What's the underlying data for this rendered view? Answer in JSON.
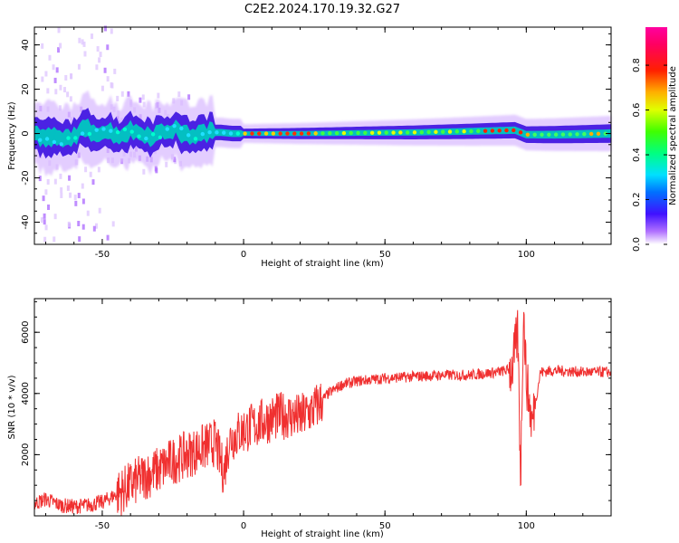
{
  "title": "C2E2.2024.170.19.32.G27",
  "colors": {
    "snr_line": "#f03030",
    "axis": "#000000",
    "background": "#ffffff"
  },
  "chart_data": [
    {
      "type": "heatmap",
      "xlabel": "Height of straight line (km)",
      "ylabel": "Frequency (Hz)",
      "xlim": [
        -74,
        130
      ],
      "ylim": [
        -50,
        48
      ],
      "xticks": [
        -50,
        0,
        50,
        100
      ],
      "yticks": [
        -40,
        -20,
        0,
        20,
        40
      ],
      "ridge": [
        {
          "h": -72,
          "f": -2.5
        },
        {
          "h": -68,
          "f": -1.5
        },
        {
          "h": -64,
          "f": -3.0
        },
        {
          "h": -60,
          "f": -1.0
        },
        {
          "h": -56,
          "f": 2.0
        },
        {
          "h": -52,
          "f": 0.5
        },
        {
          "h": -48,
          "f": 1.0
        },
        {
          "h": -44,
          "f": -1.0
        },
        {
          "h": -40,
          "f": 1.5
        },
        {
          "h": -36,
          "f": 0.0
        },
        {
          "h": -32,
          "f": -1.0
        },
        {
          "h": -28,
          "f": 1.0
        },
        {
          "h": -24,
          "f": 2.0
        },
        {
          "h": -20,
          "f": -1.0
        },
        {
          "h": -16,
          "f": -0.5
        },
        {
          "h": -12,
          "f": 0.5
        },
        {
          "h": -8,
          "f": 0.5
        },
        {
          "h": -4,
          "f": 0.0
        },
        {
          "h": 0,
          "f": 0.0
        },
        {
          "h": 20,
          "f": 0.0
        },
        {
          "h": 60,
          "f": 0.5
        },
        {
          "h": 80,
          "f": 1.0
        },
        {
          "h": 96,
          "f": 1.5
        },
        {
          "h": 100,
          "f": -0.5
        },
        {
          "h": 110,
          "f": -0.5
        },
        {
          "h": 130,
          "f": 0.0
        }
      ],
      "colorbar": {
        "label": "Normalized spectral amplitude",
        "range": [
          0,
          0.97
        ],
        "ticks": [
          0.0,
          0.2,
          0.4,
          0.6,
          0.8
        ],
        "tick_labels": [
          "0.0",
          "0.2",
          "0.4",
          "0.6",
          "0.8"
        ]
      }
    },
    {
      "type": "line",
      "xlabel": "Height of straight line (km)",
      "ylabel": "SNR (10 * v/v)",
      "xlim": [
        -74,
        130
      ],
      "ylim": [
        0,
        7100
      ],
      "xticks": [
        -50,
        0,
        50,
        100
      ],
      "yticks": [
        2000,
        4000,
        6000
      ],
      "series": [
        {
          "x": [
            -74,
            -70,
            -65,
            -60,
            -55,
            -50,
            -45,
            -40,
            -35,
            -30,
            -25,
            -20,
            -15,
            -10,
            -7,
            -5,
            0,
            5,
            10,
            15,
            20,
            25,
            30,
            35,
            40,
            50,
            60,
            70,
            80,
            90,
            95,
            97,
            98,
            99,
            100,
            102,
            105,
            110,
            120,
            130
          ],
          "y": [
            400,
            550,
            350,
            300,
            350,
            450,
            700,
            1000,
            1300,
            1500,
            1800,
            2000,
            2200,
            2400,
            1400,
            2500,
            2800,
            3000,
            3200,
            3300,
            3200,
            3500,
            4000,
            4300,
            4400,
            4500,
            4550,
            4600,
            4600,
            4700,
            4800,
            6000,
            1200,
            6800,
            4500,
            3000,
            4700,
            4750,
            4700,
            4700
          ]
        }
      ]
    }
  ]
}
